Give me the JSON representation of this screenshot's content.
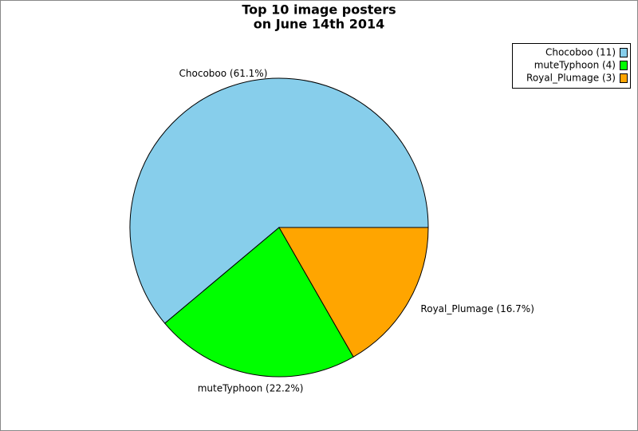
{
  "chart_data": {
    "type": "pie",
    "title": [
      "Top 10 image posters",
      "on June 14th 2014"
    ],
    "categories": [
      "Chocoboo",
      "muteTyphoon",
      "Royal_Plumage"
    ],
    "values": [
      61.1,
      22.2,
      16.7
    ],
    "value_labels": [
      "Chocoboo (61.1%)",
      "muteTyphoon (22.2%)",
      "Royal_Plumage (16.7%)"
    ],
    "counts": [
      11,
      4,
      3
    ],
    "legend_labels": [
      "Chocoboo (11)",
      "muteTyphoon (4)",
      "Royal_Plumage (3)"
    ],
    "colors": [
      "#87ceeb",
      "#00ff00",
      "#ffa500"
    ],
    "legend": "top-right"
  }
}
